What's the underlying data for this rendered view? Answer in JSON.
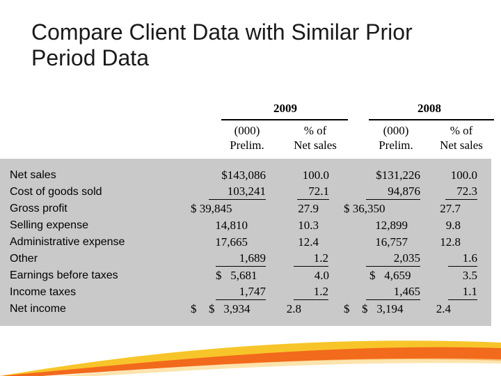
{
  "slide": {
    "title_line1": "Compare Client Data with Similar Prior",
    "title_line2": "Period Data"
  },
  "table": {
    "years": [
      "2009",
      "2008"
    ],
    "col_headers": {
      "a1": "(000)",
      "a2": "Prelim.",
      "b1": "% of",
      "b2": "Net sales",
      "c1": "(000)",
      "c2": "Prelim.",
      "d1": "% of",
      "d2": "Net sales"
    },
    "rows": [
      {
        "label": "Net sales",
        "d09": "$143,086",
        "p09": "100.0",
        "d08": "$131,226",
        "p08": "100.0"
      },
      {
        "label": "Cost of goods sold",
        "d09": "103,241",
        "p09": "72.1",
        "d08": "94,876",
        "p08": "72.3"
      },
      {
        "label": "Gross profit",
        "d09": "$ 39,845",
        "p09": "27.9",
        "d08": "$ 36,350",
        "p08": "27.7"
      },
      {
        "label": "Selling expense",
        "d09": "14,810",
        "p09": "10.3",
        "d08": "12,899",
        "p08": "9.8"
      },
      {
        "label": "Administrative expense",
        "d09": "17,665",
        "p09": "12.4",
        "d08": "16,757",
        "p08": "12.8"
      },
      {
        "label": "Other",
        "d09": "1,689",
        "p09": "1.2",
        "d08": "2,035",
        "p08": "1.6"
      },
      {
        "label": "Earnings before taxes",
        "d09": "$   5,681",
        "p09": "4.0",
        "d08": "$   4,659",
        "p08": "3.5"
      },
      {
        "label": "Income taxes",
        "d09": "1,747",
        "p09": "1.2",
        "d08": "1,465",
        "p08": "1.1"
      },
      {
        "label": "Net income",
        "d09": "$   3,934",
        "p09": "2.8",
        "d08": "$   3,194",
        "p08": "2.4"
      }
    ]
  },
  "colors": {
    "panel": "#c9c9c9",
    "swoosh_orange": "#f26a1b",
    "swoosh_yellow": "#f7c52a"
  }
}
